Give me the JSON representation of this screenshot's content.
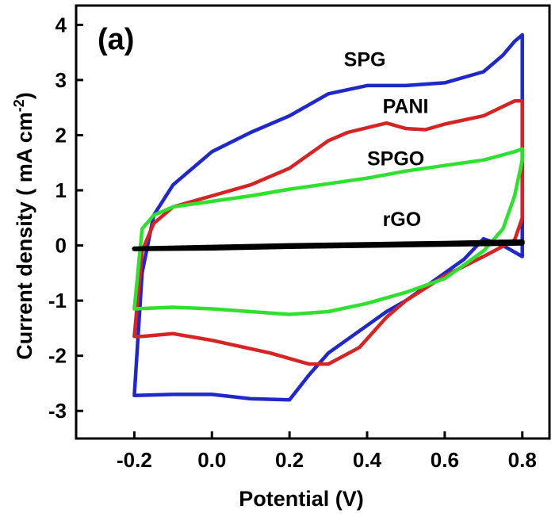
{
  "chart_data": {
    "type": "line",
    "panel_label": "(a)",
    "xlabel": "Potential (V)",
    "ylabel": "Current density ( mA cm",
    "ylabel_sup": "-2",
    "ylabel_end": ")",
    "xlim": [
      -0.35,
      0.87
    ],
    "ylim": [
      -3.5,
      4.35
    ],
    "xticks": [
      -0.2,
      0.0,
      0.2,
      0.4,
      0.6,
      0.8
    ],
    "xtick_labels": [
      "-0.2",
      "0.0",
      "0.2",
      "0.4",
      "0.6",
      "0.8"
    ],
    "yticks": [
      -3,
      -2,
      -1,
      0,
      1,
      2,
      3,
      4
    ],
    "ytick_labels": [
      "-3",
      "-2",
      "-1",
      "0",
      "1",
      "2",
      "3",
      "4"
    ],
    "grid": false,
    "legend": "none",
    "series": [
      {
        "name": "SPG",
        "color": "#2028c8",
        "x": [
          -0.2,
          -0.18,
          -0.15,
          -0.1,
          0.0,
          0.1,
          0.2,
          0.3,
          0.4,
          0.5,
          0.6,
          0.7,
          0.75,
          0.78,
          0.8,
          0.8,
          0.75,
          0.7,
          0.65,
          0.6,
          0.55,
          0.5,
          0.45,
          0.4,
          0.35,
          0.3,
          0.25,
          0.2,
          0.1,
          0.0,
          -0.1,
          -0.2
        ],
        "y": [
          -2.72,
          -0.5,
          0.55,
          1.1,
          1.7,
          2.05,
          2.35,
          2.75,
          2.9,
          2.9,
          2.95,
          3.15,
          3.45,
          3.7,
          3.82,
          -0.2,
          0.0,
          0.12,
          -0.25,
          -0.5,
          -0.75,
          -1.0,
          -1.2,
          -1.45,
          -1.7,
          -1.95,
          -2.35,
          -2.8,
          -2.78,
          -2.7,
          -2.7,
          -2.72
        ]
      },
      {
        "name": "PANI",
        "color": "#d42424",
        "x": [
          -0.2,
          -0.18,
          -0.15,
          -0.1,
          0.0,
          0.1,
          0.2,
          0.3,
          0.35,
          0.45,
          0.5,
          0.55,
          0.6,
          0.7,
          0.78,
          0.8,
          0.8,
          0.78,
          0.7,
          0.6,
          0.5,
          0.45,
          0.38,
          0.3,
          0.25,
          0.15,
          0.0,
          -0.1,
          -0.18,
          -0.2
        ],
        "y": [
          -1.65,
          -0.1,
          0.4,
          0.7,
          0.9,
          1.1,
          1.4,
          1.9,
          2.05,
          2.22,
          2.12,
          2.1,
          2.2,
          2.35,
          2.62,
          2.62,
          0.5,
          0.1,
          -0.2,
          -0.55,
          -1.0,
          -1.3,
          -1.85,
          -2.15,
          -2.15,
          -1.95,
          -1.72,
          -1.6,
          -1.65,
          -1.65
        ]
      },
      {
        "name": "SPGO",
        "color": "#30e030",
        "x": [
          -0.2,
          -0.18,
          -0.15,
          -0.1,
          0.0,
          0.1,
          0.2,
          0.3,
          0.4,
          0.5,
          0.6,
          0.7,
          0.78,
          0.8,
          0.8,
          0.78,
          0.75,
          0.7,
          0.6,
          0.5,
          0.4,
          0.3,
          0.2,
          0.1,
          0.0,
          -0.1,
          -0.2
        ],
        "y": [
          -1.15,
          0.3,
          0.55,
          0.7,
          0.8,
          0.9,
          1.02,
          1.12,
          1.22,
          1.35,
          1.45,
          1.55,
          1.7,
          1.75,
          1.55,
          0.9,
          0.3,
          -0.1,
          -0.6,
          -0.85,
          -1.05,
          -1.2,
          -1.25,
          -1.2,
          -1.15,
          -1.12,
          -1.15
        ]
      },
      {
        "name": "rGO",
        "color": "#000000",
        "x": [
          -0.2,
          0.0,
          0.2,
          0.4,
          0.6,
          0.8,
          0.8,
          0.6,
          0.4,
          0.2,
          0.0,
          -0.2
        ],
        "y": [
          -0.06,
          -0.03,
          0.0,
          0.02,
          0.04,
          0.07,
          0.04,
          0.02,
          0.0,
          -0.02,
          -0.05,
          -0.06
        ]
      }
    ],
    "annotations": [
      {
        "text": "SPG",
        "x": 0.34,
        "y": 3.25
      },
      {
        "text": "PANI",
        "x": 0.44,
        "y": 2.4
      },
      {
        "text": "SPGO",
        "x": 0.4,
        "y": 1.45
      },
      {
        "text": "rGO",
        "x": 0.44,
        "y": 0.35
      }
    ]
  }
}
